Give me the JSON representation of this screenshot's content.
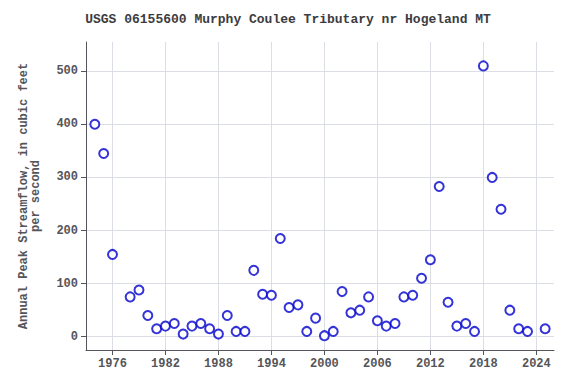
{
  "chart_data": {
    "type": "scatter",
    "title": "USGS 06155600 Murphy Coulee Tributary nr Hogeland MT",
    "ylabel": "Annual Peak Streamflow, in cubic feet\nper second",
    "x": [
      1974,
      1975,
      1976,
      1978,
      1979,
      1980,
      1981,
      1982,
      1983,
      1984,
      1985,
      1986,
      1987,
      1988,
      1989,
      1990,
      1991,
      1992,
      1993,
      1994,
      1995,
      1996,
      1997,
      1998,
      1999,
      2000,
      2001,
      2002,
      2003,
      2004,
      2005,
      2006,
      2007,
      2008,
      2009,
      2010,
      2011,
      2012,
      2013,
      2014,
      2015,
      2016,
      2017,
      2018,
      2019,
      2020,
      2021,
      2022,
      2023,
      2025
    ],
    "values": [
      400,
      345,
      155,
      75,
      88,
      40,
      15,
      20,
      25,
      5,
      20,
      25,
      15,
      5,
      40,
      10,
      10,
      125,
      80,
      78,
      185,
      55,
      60,
      10,
      35,
      2,
      10,
      85,
      45,
      50,
      75,
      30,
      20,
      25,
      75,
      78,
      110,
      145,
      283,
      65,
      20,
      25,
      10,
      510,
      300,
      240,
      50,
      15,
      10,
      15
    ],
    "color": "#0000CD",
    "marker": "circle",
    "xlim": [
      1973,
      2026
    ],
    "ylim": [
      -25,
      555
    ],
    "xticks": [
      1976,
      1982,
      1988,
      1994,
      2000,
      2006,
      2012,
      2018,
      2024
    ],
    "yticks": [
      0,
      100,
      200,
      300,
      400,
      500
    ],
    "grid": true
  }
}
